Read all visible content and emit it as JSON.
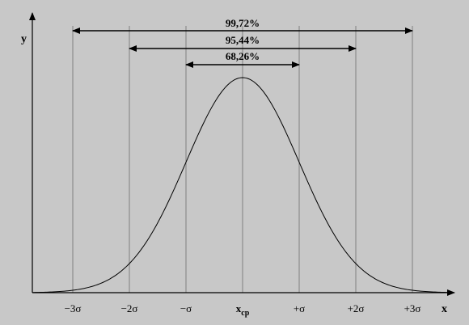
{
  "diagram": {
    "type": "normal-distribution",
    "axis_labels": {
      "y": "y",
      "x": "x"
    },
    "ticks": [
      {
        "label": "−3σ",
        "sigma": -3
      },
      {
        "label": "−2σ",
        "sigma": -2
      },
      {
        "label": "−σ",
        "sigma": -1
      },
      {
        "label": "x",
        "sub": "ср",
        "sigma": 0
      },
      {
        "label": "+σ",
        "sigma": 1
      },
      {
        "label": "+2σ",
        "sigma": 2
      },
      {
        "label": "+3σ",
        "sigma": 3
      }
    ],
    "intervals": [
      {
        "label": "99,72%",
        "sigma": 3
      },
      {
        "label": "95,44%",
        "sigma": 2
      },
      {
        "label": "68,26%",
        "sigma": 1
      }
    ],
    "colors": {
      "background": "#c8c8c8",
      "line": "#000000",
      "guide": "#808080"
    }
  }
}
